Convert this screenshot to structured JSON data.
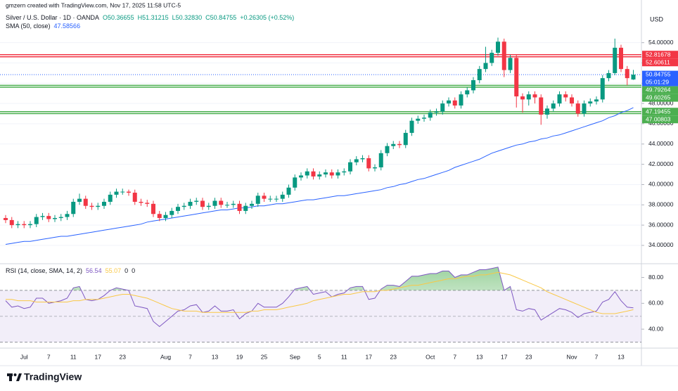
{
  "header": {
    "credit": "gmzern created with TradingView.com, Nov 17, 2025 11:58 UTC-5"
  },
  "chart_data": {
    "type": "candlestick",
    "symbol": "Silver / U.S. Dollar · 1D · OANDA",
    "ohlc_legend": [
      "O50.36655",
      "H51.31215",
      "L50.32830",
      "C50.84755",
      "+0.26305 (+0.52%)"
    ],
    "currency": "USD",
    "categories": [
      null,
      null,
      null,
      "Jul",
      null,
      null,
      null,
      "7",
      null,
      null,
      null,
      "11",
      null,
      null,
      null,
      "17",
      null,
      null,
      null,
      "23",
      null,
      null,
      null,
      null,
      null,
      null,
      "Aug",
      null,
      null,
      null,
      "7",
      null,
      null,
      null,
      "13",
      null,
      null,
      null,
      "19",
      null,
      null,
      null,
      "25",
      null,
      null,
      null,
      null,
      "Sep",
      null,
      null,
      null,
      "5",
      null,
      null,
      null,
      "11",
      null,
      null,
      null,
      "17",
      null,
      null,
      null,
      "23",
      null,
      null,
      null,
      null,
      null,
      "Oct",
      null,
      null,
      null,
      "7",
      null,
      null,
      null,
      "13",
      null,
      null,
      null,
      "17",
      null,
      null,
      null,
      "23",
      null,
      null,
      null,
      null,
      null,
      null,
      "Nov",
      null,
      null,
      null,
      "7",
      null,
      null,
      null,
      "13",
      null,
      null
    ],
    "candles": {
      "up_color": "#089981",
      "down_color": "#f23645",
      "open": [
        36.7,
        36.5,
        36.0,
        36.1,
        36.0,
        36.1,
        36.8,
        36.9,
        36.6,
        36.7,
        36.8,
        37.1,
        38.3,
        38.6,
        37.9,
        37.8,
        37.9,
        38.3,
        39.0,
        39.3,
        39.3,
        39.2,
        38.3,
        38.2,
        38.1,
        37.1,
        36.7,
        37.0,
        37.4,
        37.8,
        37.9,
        38.3,
        38.4,
        37.8,
        37.9,
        38.4,
        38.0,
        38.0,
        38.1,
        37.4,
        37.9,
        38.1,
        38.9,
        38.6,
        38.6,
        38.6,
        39.0,
        39.7,
        40.7,
        40.9,
        41.3,
        40.8,
        41.0,
        41.2,
        40.9,
        41.2,
        41.3,
        42.2,
        42.5,
        42.6,
        41.6,
        41.7,
        43.1,
        43.8,
        44.0,
        43.9,
        45.1,
        46.3,
        46.5,
        46.6,
        47.1,
        47.2,
        48.0,
        48.3,
        47.8,
        48.9,
        49.3,
        50.3,
        51.4,
        52.0,
        53.0,
        54.1,
        51.3,
        52.5,
        48.7,
        48.4,
        48.9,
        48.6,
        46.9,
        47.5,
        48.0,
        48.9,
        48.6,
        48.0,
        47.0,
        48.0,
        48.2,
        48.4,
        50.5,
        51.0,
        53.5,
        51.4,
        50.36655
      ],
      "high": [
        37.0,
        36.8,
        36.4,
        36.4,
        36.4,
        37.1,
        37.2,
        37.2,
        37.0,
        37.1,
        37.4,
        38.6,
        39.1,
        38.9,
        38.2,
        38.2,
        38.6,
        39.3,
        39.6,
        39.6,
        39.5,
        39.5,
        38.6,
        38.5,
        38.4,
        37.4,
        37.3,
        37.7,
        38.1,
        38.2,
        38.6,
        38.7,
        38.7,
        38.2,
        38.7,
        38.7,
        38.3,
        38.4,
        38.4,
        38.2,
        38.4,
        39.2,
        39.2,
        38.9,
        38.9,
        39.3,
        40.0,
        41.0,
        41.2,
        41.6,
        41.6,
        41.3,
        41.5,
        41.5,
        41.5,
        41.6,
        42.5,
        42.8,
        42.9,
        42.9,
        42.0,
        43.4,
        44.1,
        44.3,
        44.3,
        45.4,
        46.6,
        46.8,
        46.9,
        47.4,
        47.5,
        48.3,
        48.6,
        48.6,
        49.2,
        49.6,
        50.6,
        51.7,
        53.6,
        53.3,
        54.5,
        54.4,
        52.8,
        52.8,
        49.0,
        49.2,
        49.2,
        48.9,
        47.8,
        48.3,
        49.2,
        49.2,
        48.9,
        48.3,
        48.3,
        48.5,
        48.7,
        50.8,
        51.3,
        54.4,
        53.8,
        51.7,
        51.31215
      ],
      "low": [
        36.2,
        35.7,
        35.7,
        35.7,
        35.7,
        35.8,
        36.5,
        36.3,
        36.3,
        36.4,
        36.5,
        36.8,
        38.0,
        37.6,
        37.5,
        37.5,
        37.6,
        38.0,
        38.7,
        39.0,
        38.9,
        38.0,
        37.9,
        37.8,
        36.8,
        36.4,
        36.4,
        36.7,
        37.1,
        37.5,
        37.6,
        38.0,
        37.5,
        37.5,
        37.6,
        37.7,
        37.7,
        37.7,
        37.1,
        37.1,
        37.6,
        37.8,
        38.3,
        38.3,
        38.3,
        38.3,
        38.7,
        39.4,
        40.4,
        40.6,
        40.5,
        40.5,
        40.7,
        40.6,
        40.6,
        40.9,
        41.0,
        41.9,
        42.2,
        41.3,
        41.3,
        41.4,
        42.8,
        43.5,
        43.6,
        43.6,
        44.8,
        46.0,
        46.2,
        46.3,
        46.8,
        46.9,
        47.7,
        47.5,
        47.5,
        48.6,
        49.0,
        50.0,
        51.1,
        51.7,
        52.7,
        50.6,
        51.0,
        47.6,
        47.1,
        47.8,
        48.0,
        45.9,
        46.5,
        47.2,
        47.7,
        48.2,
        47.7,
        46.7,
        46.7,
        47.7,
        47.9,
        48.1,
        50.2,
        50.8,
        51.1,
        49.8,
        50.3283
      ],
      "close": [
        36.5,
        36.0,
        36.1,
        36.0,
        36.1,
        36.8,
        36.9,
        36.6,
        36.7,
        36.8,
        37.1,
        38.3,
        38.6,
        37.9,
        37.8,
        37.9,
        38.3,
        39.0,
        39.3,
        39.3,
        39.2,
        38.3,
        38.2,
        38.1,
        37.1,
        36.7,
        37.0,
        37.4,
        37.8,
        37.9,
        38.3,
        38.4,
        37.8,
        37.9,
        38.4,
        38.0,
        38.0,
        38.1,
        37.4,
        37.9,
        38.1,
        38.9,
        38.6,
        38.6,
        38.6,
        39.0,
        39.7,
        40.7,
        40.9,
        41.3,
        40.8,
        41.0,
        41.2,
        40.9,
        41.2,
        41.3,
        42.2,
        42.5,
        42.6,
        41.6,
        41.7,
        43.1,
        43.8,
        44.0,
        43.9,
        45.1,
        46.3,
        46.5,
        46.6,
        47.1,
        47.2,
        48.0,
        48.3,
        47.8,
        48.9,
        49.3,
        50.3,
        51.4,
        52.0,
        53.0,
        54.1,
        51.3,
        52.5,
        48.7,
        48.4,
        48.9,
        48.6,
        46.9,
        47.5,
        48.0,
        48.9,
        48.6,
        48.0,
        47.0,
        48.0,
        48.2,
        48.4,
        50.5,
        51.0,
        53.5,
        51.4,
        50.5,
        50.84755
      ]
    },
    "ylim": [
      32.4,
      57.1
    ],
    "yticks": [
      {
        "value": 34,
        "label": "34.00000"
      },
      {
        "value": 36,
        "label": "36.00000"
      },
      {
        "value": 38,
        "label": "38.00000"
      },
      {
        "value": 40,
        "label": "40.00000"
      },
      {
        "value": 42,
        "label": "42.00000"
      },
      {
        "value": 44,
        "label": "44.00000"
      },
      {
        "value": 46,
        "label": "46.00000"
      },
      {
        "value": 48,
        "label": "48.00000"
      },
      {
        "value": 50,
        "label": "50.00000"
      },
      {
        "value": 52,
        "label": "52.00000"
      },
      {
        "value": 54,
        "label": "54.00000"
      }
    ],
    "grid": true,
    "sma": {
      "name": "SMA (50, close)",
      "legend_value": 47.58566,
      "color": "#2962ff",
      "values": [
        34.1,
        34.2,
        34.3,
        34.4,
        34.4,
        34.5,
        34.6,
        34.7,
        34.8,
        34.9,
        34.9,
        35.0,
        35.1,
        35.2,
        35.3,
        35.4,
        35.5,
        35.6,
        35.7,
        35.8,
        35.9,
        36.0,
        36.1,
        36.3,
        36.4,
        36.5,
        36.6,
        36.7,
        36.8,
        36.9,
        37.0,
        37.1,
        37.2,
        37.3,
        37.4,
        37.5,
        37.5,
        37.6,
        37.7,
        37.7,
        37.8,
        37.9,
        37.9,
        38.0,
        38.1,
        38.1,
        38.2,
        38.3,
        38.4,
        38.5,
        38.5,
        38.6,
        38.7,
        38.8,
        38.9,
        38.9,
        39.0,
        39.1,
        39.2,
        39.3,
        39.4,
        39.5,
        39.7,
        39.8,
        40.0,
        40.1,
        40.3,
        40.5,
        40.6,
        40.8,
        41.0,
        41.2,
        41.4,
        41.7,
        41.9,
        42.1,
        42.3,
        42.5,
        42.8,
        43.1,
        43.3,
        43.5,
        43.7,
        43.9,
        44.0,
        44.2,
        44.3,
        44.5,
        44.6,
        44.8,
        44.9,
        45.1,
        45.3,
        45.5,
        45.7,
        45.9,
        46.1,
        46.3,
        46.6,
        46.8,
        47.1,
        47.3,
        47.59
      ]
    },
    "levels": [
      {
        "value": 52.81678,
        "color": "#f23645"
      },
      {
        "value": 52.60611,
        "color": "#f23645"
      },
      {
        "value": 49.79264,
        "color": "#4caf50"
      },
      {
        "value": 49.60265,
        "color": "#4caf50"
      },
      {
        "value": 47.19455,
        "color": "#4caf50"
      },
      {
        "value": 47.00803,
        "color": "#4caf50"
      }
    ],
    "last_price": {
      "countdown": "05:01:29",
      "color": "#2962ff"
    },
    "rsi": {
      "name": "RSI (14, close, SMA, 14, 2)",
      "legend_extra": [
        0,
        0
      ],
      "ylim": [
        27,
        89
      ],
      "yticks": [
        {
          "value": 80,
          "label": "80.00"
        },
        {
          "value": 60,
          "label": "60.00"
        },
        {
          "value": 40,
          "label": "40.00"
        }
      ],
      "bands": {
        "upper": 70,
        "middle": 50,
        "lower": 30
      },
      "series": [
        {
          "name": "RSI",
          "color": "#7e57c2",
          "values": [
            62,
            57,
            58,
            56,
            57,
            64,
            64,
            60,
            61,
            62,
            64,
            72,
            73,
            63,
            62,
            63,
            66,
            70,
            72,
            71,
            70,
            58,
            57,
            56,
            46,
            42,
            46,
            50,
            54,
            55,
            58,
            59,
            53,
            54,
            58,
            54,
            54,
            55,
            48,
            52,
            54,
            60,
            57,
            57,
            57,
            60,
            65,
            71,
            72,
            73,
            67,
            68,
            69,
            65,
            67,
            68,
            72,
            73,
            73,
            63,
            64,
            71,
            74,
            74,
            73,
            77,
            81,
            81,
            82,
            83,
            83,
            85,
            85,
            80,
            82,
            82,
            84,
            86,
            86,
            87,
            88,
            70,
            73,
            55,
            54,
            56,
            55,
            47,
            50,
            53,
            56,
            55,
            53,
            49,
            52,
            53,
            54,
            61,
            63,
            69,
            62,
            57,
            56.54
          ]
        },
        {
          "name": "SMA",
          "color": "#f9c846",
          "values": [
            63,
            63,
            62,
            62,
            62,
            61,
            61,
            61,
            61,
            61,
            61,
            62,
            62,
            63,
            63,
            63,
            64,
            65,
            66,
            67,
            67,
            66,
            65,
            64,
            62,
            60,
            58,
            56,
            55,
            54,
            54,
            54,
            53,
            53,
            53,
            53,
            53,
            53,
            53,
            53,
            54,
            54,
            55,
            55,
            55,
            56,
            57,
            58,
            59,
            60,
            62,
            63,
            64,
            65,
            66,
            67,
            67,
            68,
            69,
            69,
            69,
            70,
            70,
            71,
            72,
            73,
            74,
            74,
            75,
            76,
            77,
            78,
            79,
            79,
            80,
            81,
            81,
            82,
            82,
            83,
            84,
            83,
            82,
            80,
            78,
            76,
            74,
            72,
            69,
            67,
            65,
            63,
            61,
            59,
            57,
            55,
            53,
            52,
            52,
            52,
            53,
            54,
            55.07
          ]
        }
      ]
    },
    "footer": "TradingView"
  }
}
